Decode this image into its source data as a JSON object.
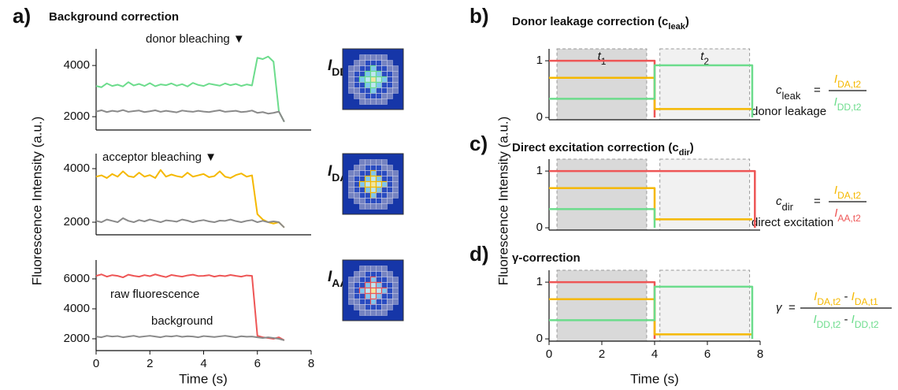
{
  "chart_data": [
    {
      "type": "line",
      "panel": "a)",
      "title": "Background correction",
      "annotations": [
        "donor bleaching ▼"
      ],
      "trace_label": {
        "text": "I",
        "sub": "DD"
      },
      "x": [
        0,
        0.2,
        0.4,
        0.6,
        0.8,
        1,
        1.2,
        1.4,
        1.6,
        1.8,
        2,
        2.2,
        2.4,
        2.6,
        2.8,
        3,
        3.2,
        3.4,
        3.6,
        3.8,
        4,
        4.2,
        4.4,
        4.6,
        4.8,
        5,
        5.2,
        5.4,
        5.6,
        5.8,
        6,
        6.2,
        6.4,
        6.6,
        6.8,
        7
      ],
      "xlim": [
        0,
        8
      ],
      "ylim": [
        1480,
        4650
      ],
      "yticks": [
        2000,
        4000
      ],
      "series": [
        {
          "color": "#6cdc8c",
          "values": [
            3200,
            3150,
            3300,
            3200,
            3250,
            3180,
            3350,
            3220,
            3280,
            3200,
            3310,
            3190,
            3260,
            3230,
            3300,
            3210,
            3270,
            3180,
            3320,
            3240,
            3200,
            3290,
            3250,
            3210,
            3300,
            3230,
            3280,
            3200,
            3260,
            3220,
            4300,
            4250,
            4350,
            4150,
            2200,
            1800
          ]
        },
        {
          "color": "#8a8a8a",
          "values": [
            2200,
            2250,
            2180,
            2230,
            2200,
            2260,
            2190,
            2220,
            2240,
            2180,
            2210,
            2250,
            2190,
            2230,
            2200,
            2170,
            2240,
            2210,
            2190,
            2230,
            2200,
            2180,
            2220,
            2250,
            2190,
            2210,
            2230,
            2180,
            2200,
            2240,
            2150,
            2180,
            2120,
            2150,
            2200,
            1800
          ]
        }
      ]
    },
    {
      "type": "line",
      "ylabel": "Fluorescence Intensity (a.u.)",
      "annotations": [
        "acceptor bleaching ▼"
      ],
      "trace_label": {
        "text": "I",
        "sub": "DA"
      },
      "x": [
        0,
        0.2,
        0.4,
        0.6,
        0.8,
        1,
        1.2,
        1.4,
        1.6,
        1.8,
        2,
        2.2,
        2.4,
        2.6,
        2.8,
        3,
        3.2,
        3.4,
        3.6,
        3.8,
        4,
        4.2,
        4.4,
        4.6,
        4.8,
        5,
        5.2,
        5.4,
        5.6,
        5.8,
        6,
        6.2,
        6.4,
        6.6,
        6.8,
        7
      ],
      "xlim": [
        0,
        8
      ],
      "ylim": [
        1530,
        4560
      ],
      "yticks": [
        2000,
        4000
      ],
      "series": [
        {
          "color": "#f5b800",
          "values": [
            3700,
            3750,
            3650,
            3800,
            3700,
            3900,
            3720,
            3680,
            3850,
            3700,
            3760,
            3650,
            3950,
            3700,
            3780,
            3720,
            3680,
            3850,
            3700,
            3750,
            3800,
            3680,
            3720,
            3900,
            3700,
            3650,
            3760,
            3820,
            3700,
            3750,
            2300,
            2100,
            2000,
            1950,
            2000,
            1800
          ]
        },
        {
          "color": "#8a8a8a",
          "values": [
            2050,
            2000,
            2100,
            2050,
            2000,
            2150,
            2050,
            2000,
            2080,
            2030,
            2100,
            2050,
            2000,
            2070,
            2050,
            2020,
            2100,
            2060,
            2000,
            2050,
            2080,
            2030,
            2000,
            2060,
            2050,
            2100,
            2040,
            2000,
            2050,
            2080,
            2000,
            2050,
            2000,
            2030,
            2000,
            1800
          ]
        }
      ]
    },
    {
      "type": "line",
      "xlabel": "Time (s)",
      "annotations": [
        "raw fluorescence",
        "background"
      ],
      "trace_label": {
        "text": "I",
        "sub": "AA"
      },
      "x": [
        0,
        0.2,
        0.4,
        0.6,
        0.8,
        1,
        1.2,
        1.4,
        1.6,
        1.8,
        2,
        2.2,
        2.4,
        2.6,
        2.8,
        3,
        3.2,
        3.4,
        3.6,
        3.8,
        4,
        4.2,
        4.4,
        4.6,
        4.8,
        5,
        5.2,
        5.4,
        5.6,
        5.8,
        6,
        6.2,
        6.4,
        6.6,
        6.8,
        7
      ],
      "xlim": [
        0,
        8
      ],
      "xticks": [
        0,
        2,
        4,
        6,
        8
      ],
      "ylim": [
        1210,
        7260
      ],
      "yticks": [
        2000,
        4000,
        6000
      ],
      "series": [
        {
          "color": "#ee5656",
          "values": [
            6200,
            6300,
            6150,
            6250,
            6200,
            6100,
            6280,
            6200,
            6150,
            6250,
            6180,
            6300,
            6200,
            6120,
            6260,
            6200,
            6150,
            6230,
            6280,
            6190,
            6200,
            6250,
            6150,
            6220,
            6180,
            6260,
            6200,
            6150,
            6230,
            6200,
            2200,
            2100,
            2050,
            2000,
            2100,
            1900
          ]
        },
        {
          "color": "#8a8a8a",
          "values": [
            2150,
            2100,
            2200,
            2150,
            2180,
            2100,
            2150,
            2200,
            2120,
            2160,
            2200,
            2150,
            2100,
            2180,
            2150,
            2200,
            2130,
            2170,
            2150,
            2100,
            2180,
            2150,
            2120,
            2160,
            2200,
            2150,
            2100,
            2170,
            2140,
            2150,
            2100,
            2050,
            2100,
            2050,
            2000,
            1900
          ]
        }
      ]
    },
    {
      "type": "step",
      "panel": "b)",
      "title": {
        "text": "Donor leakage correction (c",
        "sub": "leak",
        "end": ")"
      },
      "xlim": [
        0,
        8
      ],
      "ylim": [
        -0.04,
        1.21
      ],
      "yticks": [
        0,
        1
      ],
      "regions": [
        {
          "x": [
            0.3,
            3.7
          ],
          "color": "#d9d9d9",
          "label": "t",
          "sub": "1"
        },
        {
          "x": [
            4.2,
            7.6
          ],
          "color": "#f1f1f1",
          "label": "t",
          "sub": "2"
        }
      ],
      "series": [
        {
          "color": "#ee5656",
          "x": [
            0,
            4,
            4
          ],
          "values": [
            1,
            1,
            0
          ]
        },
        {
          "color": "#f5b800",
          "x": [
            0,
            4,
            4,
            7.7
          ],
          "values": [
            0.7,
            0.7,
            0.15,
            0.15
          ]
        },
        {
          "color": "#6cdc8c",
          "x": [
            0,
            4,
            4,
            7.7,
            7.7
          ],
          "values": [
            0.33,
            0.33,
            0.92,
            0.92,
            0
          ]
        }
      ],
      "formula": {
        "lhs": "c",
        "lhs_sub": "leak",
        "equals": "=",
        "numerator": [
          {
            "text": "I",
            "sub": "DA,t2"
          }
        ],
        "denominator": [
          {
            "text": "I",
            "sub": "DD,t2"
          }
        ]
      },
      "annotation": "donor leakage"
    },
    {
      "type": "step",
      "panel": "c)",
      "title": {
        "text": "Direct excitation correction (c",
        "sub": "dir",
        "end": ")"
      },
      "ylabel": "Fluorescence Intensity (a.u.)",
      "xlim": [
        0,
        8
      ],
      "ylim": [
        -0.04,
        1.21
      ],
      "yticks": [
        0,
        1
      ],
      "regions": [
        {
          "x": [
            0.3,
            3.7
          ],
          "color": "#d9d9d9"
        },
        {
          "x": [
            4.2,
            7.6
          ],
          "color": "#f1f1f1"
        }
      ],
      "series": [
        {
          "color": "#ee5656",
          "x": [
            0,
            7.8,
            7.8
          ],
          "values": [
            1,
            1,
            0
          ]
        },
        {
          "color": "#f5b800",
          "x": [
            0,
            4,
            4,
            7.7
          ],
          "values": [
            0.7,
            0.7,
            0.15,
            0.15
          ]
        },
        {
          "color": "#6cdc8c",
          "x": [
            0,
            4,
            4
          ],
          "values": [
            0.33,
            0.33,
            0
          ]
        }
      ],
      "formula": {
        "lhs": "c",
        "lhs_sub": "dir",
        "equals": "=",
        "numerator": [
          {
            "text": "I",
            "sub": "DA,t2"
          }
        ],
        "denominator": [
          {
            "text": "I",
            "sub": "AA,t2"
          }
        ]
      },
      "annotation": "direct excitation"
    },
    {
      "type": "step",
      "panel": "d)",
      "title": {
        "text": "γ-correction"
      },
      "xlabel": "Time (s)",
      "xlim": [
        0,
        8
      ],
      "xticks": [
        0,
        2,
        4,
        6,
        8
      ],
      "ylim": [
        -0.04,
        1.21
      ],
      "yticks": [
        0,
        1
      ],
      "regions": [
        {
          "x": [
            0.3,
            3.7
          ],
          "color": "#d9d9d9"
        },
        {
          "x": [
            4.2,
            7.6
          ],
          "color": "#f1f1f1"
        }
      ],
      "series": [
        {
          "color": "#ee5656",
          "x": [
            0,
            4,
            4
          ],
          "values": [
            1,
            1,
            0
          ]
        },
        {
          "color": "#f5b800",
          "x": [
            0,
            4,
            4,
            7.7
          ],
          "values": [
            0.7,
            0.7,
            0.08,
            0.08
          ]
        },
        {
          "color": "#6cdc8c",
          "x": [
            0,
            4,
            4,
            7.7,
            7.7
          ],
          "values": [
            0.33,
            0.33,
            0.92,
            0.92,
            0
          ]
        }
      ],
      "formula": {
        "lhs": "γ",
        "equals": "=",
        "numerator": [
          {
            "text": "I",
            "sub": "DA,t2"
          },
          {
            "text": " - "
          },
          {
            "text": "I",
            "sub": "DA,t1"
          }
        ],
        "denominator": [
          {
            "text": "I",
            "sub": "DD,t2"
          },
          {
            "text": " - "
          },
          {
            "text": "I",
            "sub": "DD,t2"
          }
        ]
      }
    }
  ]
}
